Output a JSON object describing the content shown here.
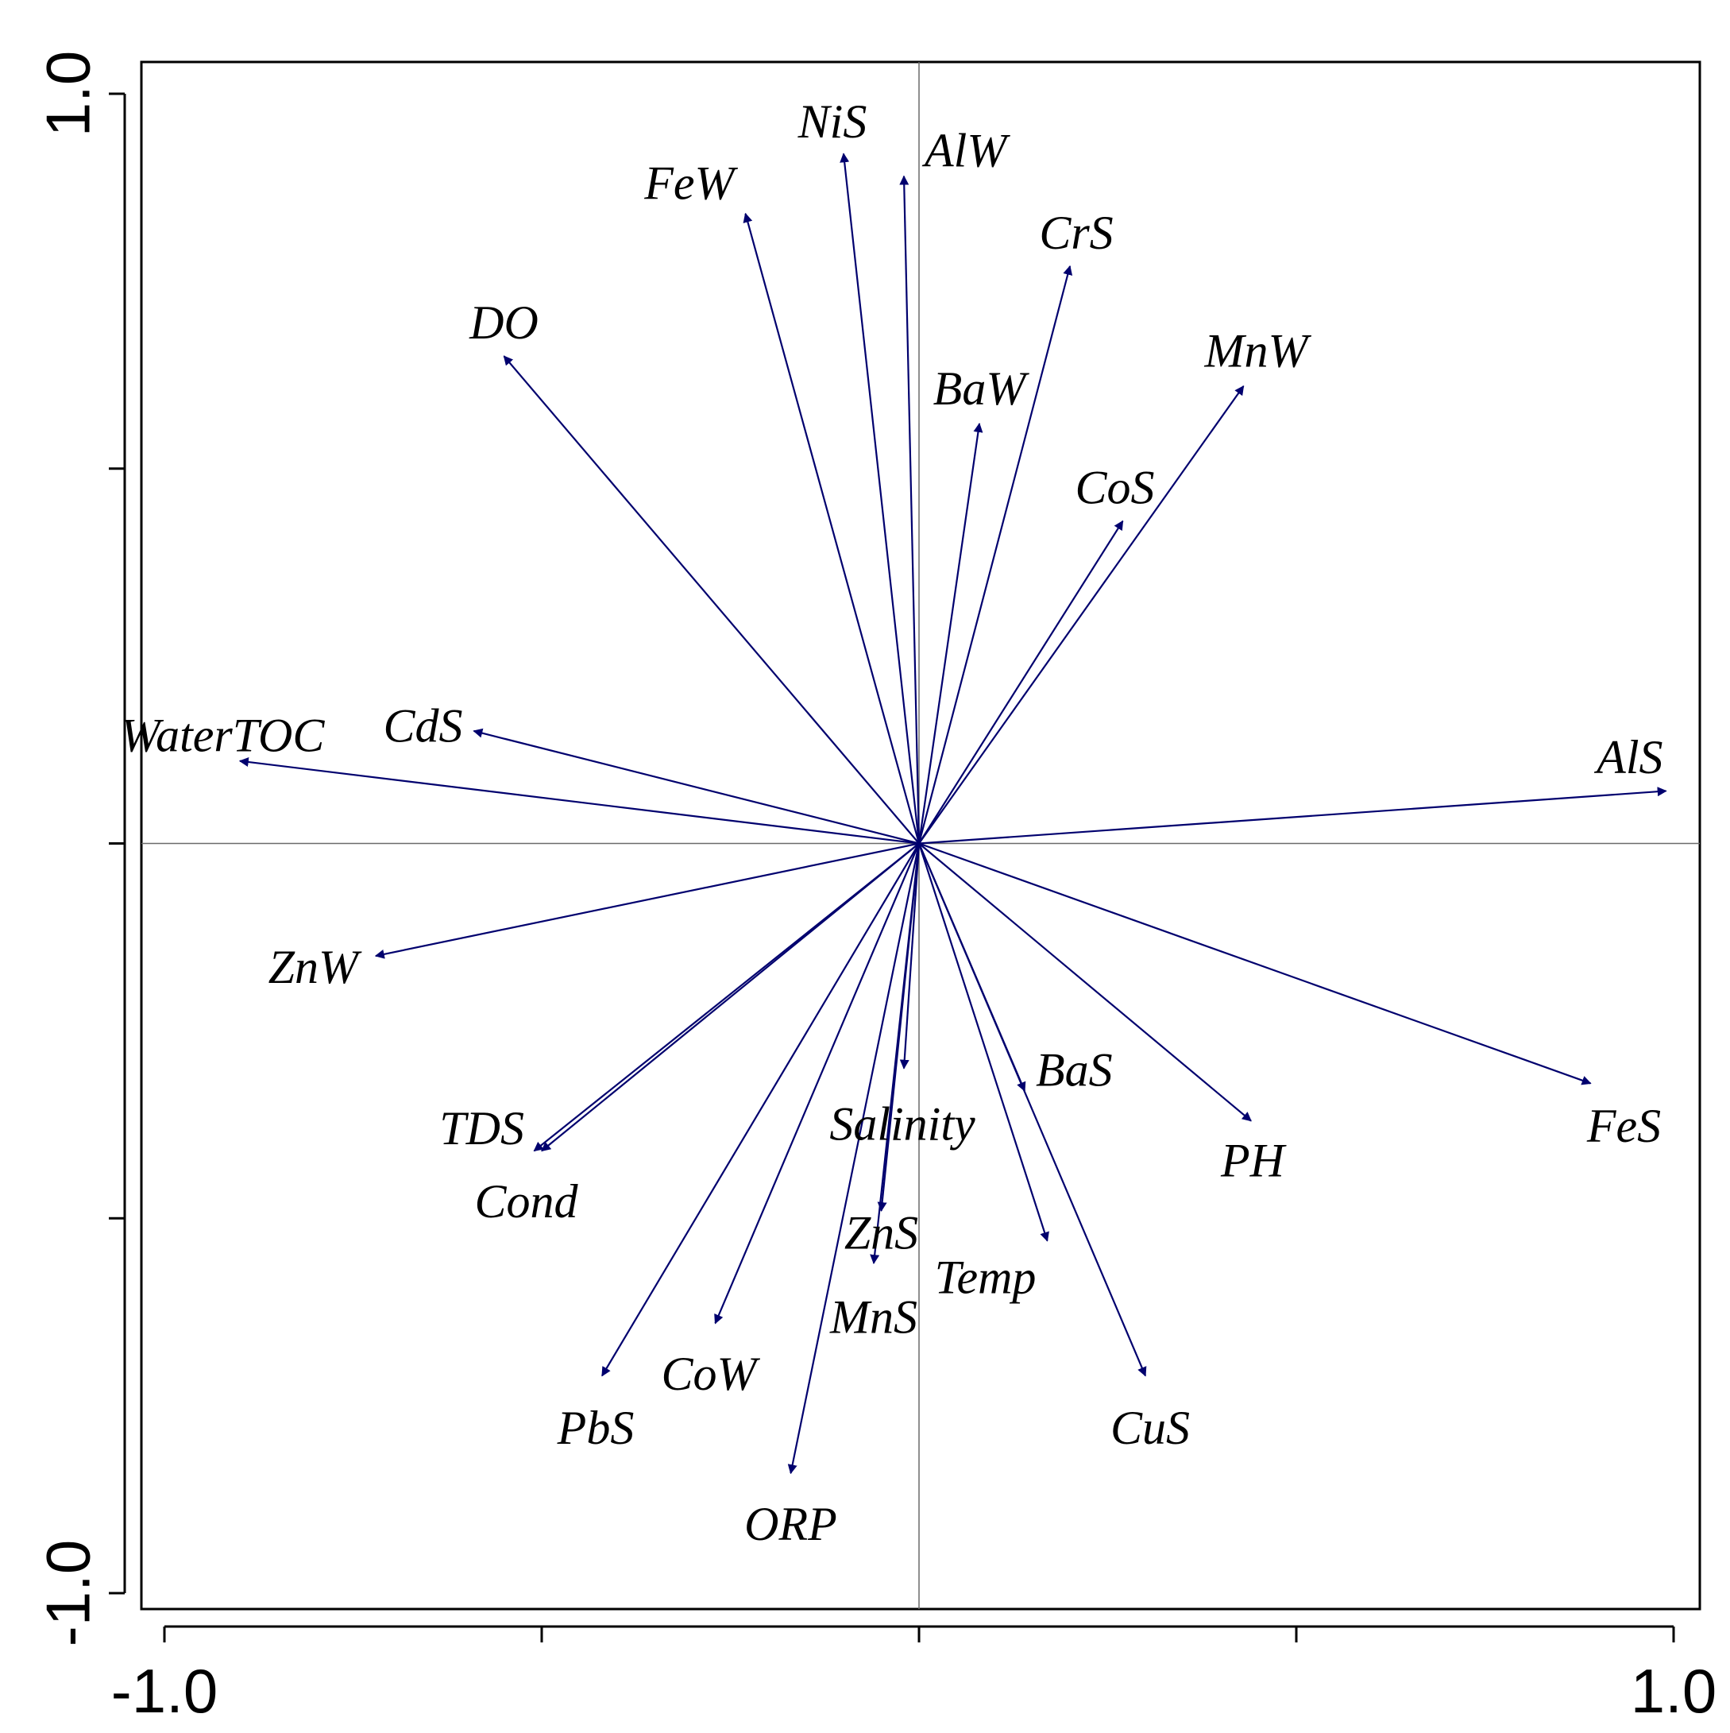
{
  "chart_data": {
    "type": "scatter",
    "subtype": "biplot-vectors",
    "title": "",
    "xlabel": "",
    "ylabel": "",
    "xlim": [
      -1.0,
      1.0
    ],
    "ylim": [
      -1.0,
      1.0
    ],
    "x_tick_labels": [
      "-1.0",
      "1.0"
    ],
    "y_tick_labels": [
      "1.0",
      "-1.0"
    ],
    "x_tick_values": [
      -1.0,
      -0.5,
      0.0,
      0.5,
      1.0
    ],
    "y_tick_values": [
      1.0,
      0.5,
      0.0,
      -0.5,
      -1.0
    ],
    "zero_lines": true,
    "arrow_color": "#00006e",
    "vectors": [
      {
        "label": "NiS",
        "x": -0.1,
        "y": 0.92
      },
      {
        "label": "AlW",
        "x": -0.02,
        "y": 0.89
      },
      {
        "label": "FeW",
        "x": -0.23,
        "y": 0.84
      },
      {
        "label": "CrS",
        "x": 0.2,
        "y": 0.77
      },
      {
        "label": "DO",
        "x": -0.55,
        "y": 0.65
      },
      {
        "label": "MnW",
        "x": 0.43,
        "y": 0.61
      },
      {
        "label": "BaW",
        "x": 0.08,
        "y": 0.56
      },
      {
        "label": "CoS",
        "x": 0.27,
        "y": 0.43
      },
      {
        "label": "WaterTOC",
        "x": -0.9,
        "y": 0.11
      },
      {
        "label": "CdS",
        "x": -0.59,
        "y": 0.15
      },
      {
        "label": "AlS",
        "x": 0.99,
        "y": 0.07
      },
      {
        "label": "ZnW",
        "x": -0.72,
        "y": -0.15
      },
      {
        "label": "TDS",
        "x": -0.5,
        "y": -0.41
      },
      {
        "label": "Cond",
        "x": -0.51,
        "y": -0.41
      },
      {
        "label": "Salinity",
        "x": -0.02,
        "y": -0.3
      },
      {
        "label": "BaS",
        "x": 0.14,
        "y": -0.33
      },
      {
        "label": "PH",
        "x": 0.44,
        "y": -0.37
      },
      {
        "label": "FeS",
        "x": 0.89,
        "y": -0.32
      },
      {
        "label": "ZnS",
        "x": -0.05,
        "y": -0.49
      },
      {
        "label": "MnS",
        "x": -0.06,
        "y": -0.56
      },
      {
        "label": "Temp",
        "x": 0.17,
        "y": -0.53
      },
      {
        "label": "CoW",
        "x": -0.27,
        "y": -0.64
      },
      {
        "label": "PbS",
        "x": -0.42,
        "y": -0.71
      },
      {
        "label": "CuS",
        "x": 0.3,
        "y": -0.71
      },
      {
        "label": "ORP",
        "x": -0.17,
        "y": -0.84
      }
    ]
  }
}
